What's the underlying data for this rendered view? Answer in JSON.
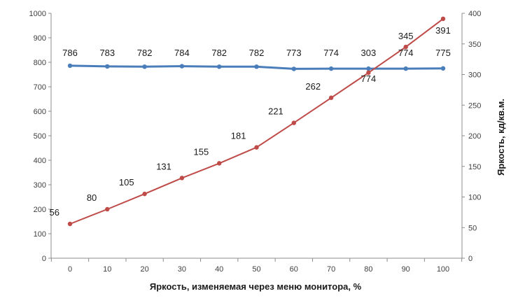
{
  "chart_data": {
    "type": "line",
    "title": "",
    "xlabel": "Яркость, изменяемая через меню монитора, %",
    "ylabel": "",
    "y2label": "Яркость, кд/кв.м.",
    "categories": [
      "0",
      "10",
      "20",
      "30",
      "40",
      "50",
      "60",
      "70",
      "80",
      "90",
      "100"
    ],
    "x": [
      0,
      10,
      20,
      30,
      40,
      50,
      60,
      70,
      80,
      90,
      100
    ],
    "ylim": [
      0,
      1000
    ],
    "y_ticks": [
      0,
      100,
      200,
      300,
      400,
      500,
      600,
      700,
      800,
      900,
      1000
    ],
    "y2lim": [
      0,
      400
    ],
    "y2_ticks": [
      0,
      50,
      100,
      150,
      200,
      250,
      300,
      350,
      400
    ],
    "grid": false,
    "legend": "none",
    "series": [
      {
        "axis": "left",
        "color": "#4a7ebb",
        "values": [
          786,
          783,
          782,
          784,
          782,
          782,
          773,
          774,
          774,
          774,
          775
        ],
        "labels": [
          "786",
          "783",
          "782",
          "784",
          "782",
          "782",
          "773",
          "774",
          "774",
          "774",
          "775"
        ]
      },
      {
        "axis": "right",
        "color": "#be4b48",
        "values": [
          56,
          80,
          105,
          131,
          155,
          181,
          221,
          262,
          303,
          345,
          391
        ],
        "labels": [
          "56",
          "80",
          "105",
          "131",
          "155",
          "181",
          "221",
          "262",
          "303",
          "345",
          "391"
        ]
      }
    ]
  }
}
